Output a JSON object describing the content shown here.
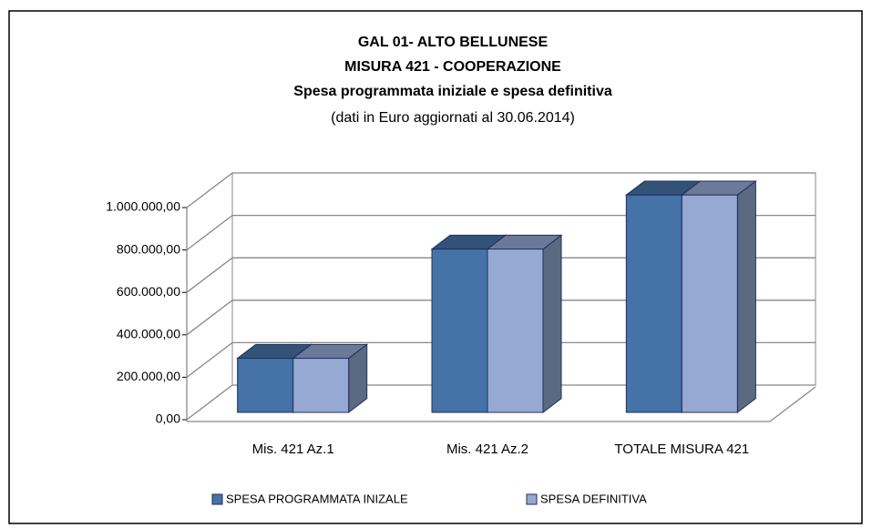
{
  "chart_data": {
    "type": "bar3d",
    "title": "GAL 01- ALTO BELLUNESE",
    "subtitle": "MISURA 421 - COOPERAZIONE",
    "subtitle2": "Spesa programmata iniziale e spesa definitiva",
    "note": "(dati in Euro aggiornati al 30.06.2014)",
    "categories": [
      "Mis. 421 Az.1",
      "Mis. 421 Az.2",
      "TOTALE MISURA 421"
    ],
    "series": [
      {
        "name": "SPESA PROGRAMMATA INIZALE",
        "color": "#4572a7",
        "values": [
          255000,
          770000,
          1025000
        ]
      },
      {
        "name": "SPESA DEFINITIVA",
        "color": "#95a9d3",
        "values": [
          255000,
          770000,
          1025000
        ]
      }
    ],
    "ylim": [
      0,
      1000000
    ],
    "yticks": [
      {
        "value": 0,
        "label": "0,00"
      },
      {
        "value": 200000,
        "label": "200.000,00"
      },
      {
        "value": 400000,
        "label": "400.000,00"
      },
      {
        "value": 600000,
        "label": "600.000,00"
      },
      {
        "value": 800000,
        "label": "800.000,00"
      },
      {
        "value": 1000000,
        "label": "1.000.000,00"
      }
    ],
    "grid": true,
    "legend": "bottom"
  }
}
